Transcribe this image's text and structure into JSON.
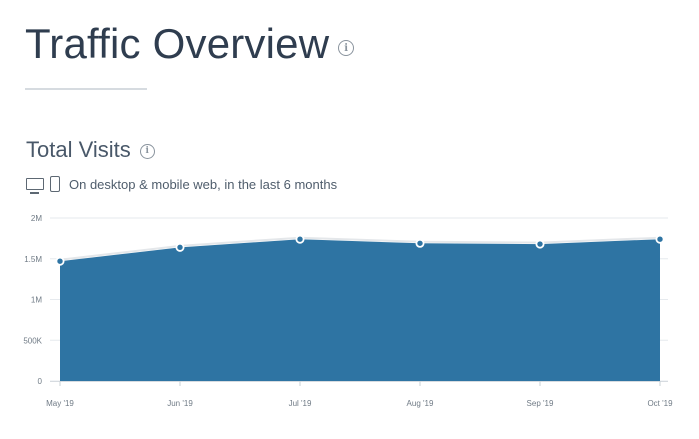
{
  "header": {
    "title": "Traffic Overview",
    "info_icon": "info-icon"
  },
  "section": {
    "title": "Total Visits",
    "info_icon": "info-icon",
    "devices": [
      "desktop-icon",
      "mobile-icon"
    ],
    "description": "On desktop & mobile web, in the last 6 months"
  },
  "colors": {
    "area_fill": "#2e74a3",
    "line": "#ffffff",
    "grid": "#e6eaee",
    "title": "#2f3d4f"
  },
  "chart_data": {
    "type": "area",
    "title": "",
    "xlabel": "",
    "ylabel": "",
    "categories": [
      "May '19",
      "Jun '19",
      "Jul '19",
      "Aug '19",
      "Sep '19",
      "Oct '19"
    ],
    "values": [
      1470000,
      1640000,
      1740000,
      1690000,
      1680000,
      1740000
    ],
    "ylim": [
      0,
      2000000
    ],
    "y_ticks": [
      0,
      500000,
      1000000,
      1500000,
      2000000
    ],
    "y_tick_labels": [
      "0",
      "500K",
      "1M",
      "1.5M",
      "2M"
    ],
    "grid": true,
    "legend": "none"
  }
}
